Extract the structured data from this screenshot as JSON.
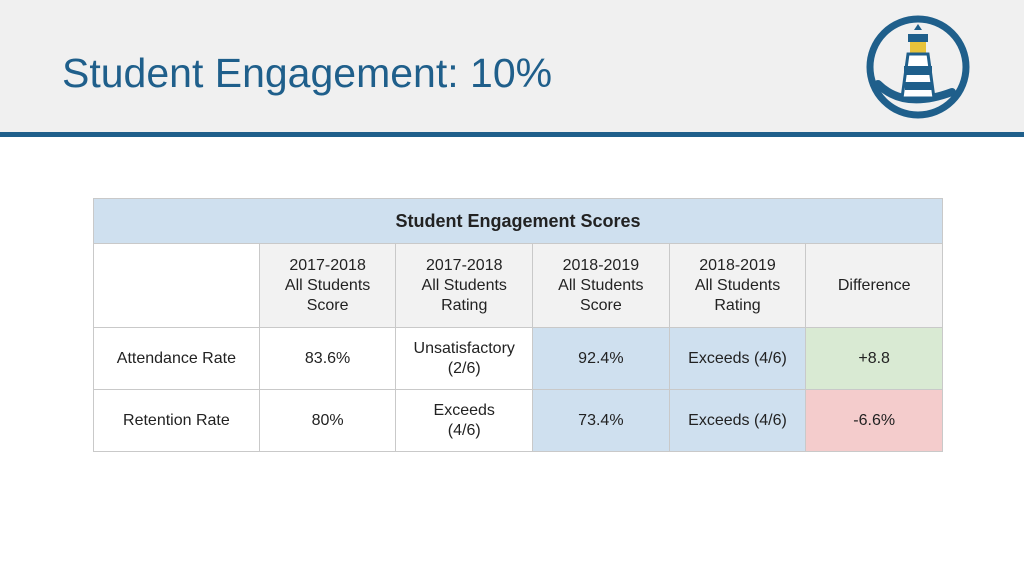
{
  "slide": {
    "title": "Student Engagement: 10%"
  },
  "logo": {
    "icon": "lighthouse-icon"
  },
  "table": {
    "caption": "Student Engagement Scores",
    "columns": [
      "",
      "2017-2018\nAll Students\nScore",
      "2017-2018\nAll Students\nRating",
      "2018-2019\nAll Students\nScore",
      "2018-2019\nAll Students\nRating",
      "Difference"
    ],
    "rows": [
      [
        "Attendance Rate",
        "83.6%",
        "Unsatisfactory\n(2/6)",
        "92.4%",
        "Exceeds (4/6)",
        "+8.8"
      ],
      [
        "Retention Rate",
        "80%",
        "Exceeds\n(4/6)",
        "73.4%",
        "Exceeds (4/6)",
        "-6.6%"
      ]
    ]
  },
  "colors": {
    "brand": "#1f5f8b",
    "header_bg": "#cfe0ef",
    "positive": "#d9ead3",
    "negative": "#f4cccc"
  }
}
